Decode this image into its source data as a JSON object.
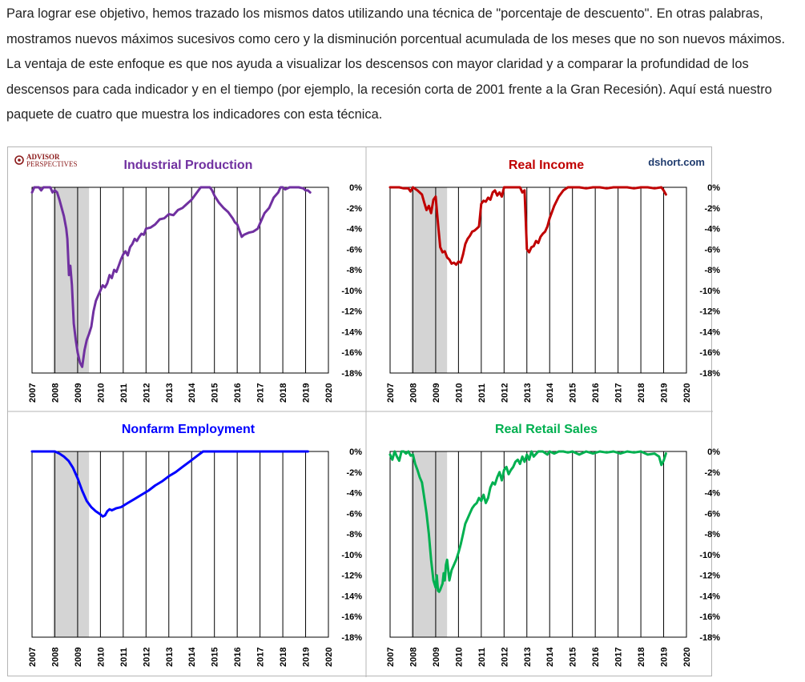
{
  "intro_text": "Para lograr ese objetivo, hemos trazado los mismos datos utilizando una técnica de \"porcentaje de descuento\". En otras palabras, mostramos nuevos máximos sucesivos como cero y la disminución porcentual acumulada de los meses que no son nuevos máximos. La ventaja de este enfoque es que nos ayuda a visualizar los descensos con mayor claridad y a comparar la profundidad de los descensos para cada indicador y en el tiempo (por ejemplo, la recesión corta de 2001 frente a la Gran Recesión). Aquí está nuestro paquete de cuatro que muestra los indicadores con esta técnica.",
  "logo": {
    "line1": "ADVISOR",
    "line2": "PERSPECTIVES"
  },
  "source": "dshort.com",
  "chart_data": [
    {
      "type": "line",
      "title": "Industrial Production",
      "color": "#7030a0",
      "xlim": [
        2007,
        2020
      ],
      "ylim": [
        -18,
        0
      ],
      "x_ticks": [
        "2007",
        "2008",
        "2009",
        "2010",
        "2011",
        "2012",
        "2013",
        "2014",
        "2015",
        "2016",
        "2017",
        "2018",
        "2019",
        "2020"
      ],
      "y_ticks": [
        "0%",
        "-2%",
        "-4%",
        "-6%",
        "-8%",
        "-10%",
        "-12%",
        "-14%",
        "-16%",
        "-18%"
      ],
      "recession": [
        2007.92,
        2009.5
      ],
      "x": [
        2007.0,
        2007.1,
        2007.2,
        2007.3,
        2007.4,
        2007.5,
        2007.6,
        2007.7,
        2007.8,
        2007.9,
        2008.0,
        2008.1,
        2008.2,
        2008.3,
        2008.4,
        2008.5,
        2008.55,
        2008.62,
        2008.68,
        2008.75,
        2008.83,
        2008.92,
        2009.0,
        2009.1,
        2009.2,
        2009.3,
        2009.4,
        2009.5,
        2009.6,
        2009.7,
        2009.8,
        2009.9,
        2010.0,
        2010.1,
        2010.2,
        2010.3,
        2010.4,
        2010.5,
        2010.6,
        2010.7,
        2010.8,
        2010.9,
        2011.0,
        2011.1,
        2011.2,
        2011.3,
        2011.4,
        2011.5,
        2011.6,
        2011.7,
        2011.8,
        2011.9,
        2012.0,
        2012.2,
        2012.4,
        2012.6,
        2012.8,
        2013.0,
        2013.2,
        2013.4,
        2013.6,
        2013.8,
        2014.0,
        2014.2,
        2014.4,
        2014.6,
        2014.8,
        2014.9,
        2015.0,
        2015.2,
        2015.4,
        2015.6,
        2015.8,
        2015.9,
        2016.0,
        2016.1,
        2016.2,
        2016.3,
        2016.5,
        2016.7,
        2016.9,
        2017.0,
        2017.2,
        2017.4,
        2017.6,
        2017.8,
        2017.9,
        2018.0,
        2018.1,
        2018.3,
        2018.5,
        2018.7,
        2018.9,
        2019.0,
        2019.1,
        2019.2
      ],
      "y": [
        -0.5,
        0,
        0,
        0,
        -0.3,
        0,
        0,
        0,
        0,
        -0.5,
        -0.3,
        -0.5,
        -1.2,
        -2.0,
        -2.8,
        -4.0,
        -5.0,
        -8.5,
        -7.6,
        -9.5,
        -13.2,
        -14.8,
        -16.0,
        -17.0,
        -17.4,
        -15.8,
        -14.8,
        -14.2,
        -13.5,
        -12.0,
        -11.0,
        -10.5,
        -10.0,
        -9.5,
        -9.7,
        -9.3,
        -8.5,
        -8.8,
        -8.0,
        -8.2,
        -7.6,
        -7.0,
        -6.5,
        -6.2,
        -6.6,
        -5.8,
        -5.5,
        -5.0,
        -5.2,
        -4.8,
        -4.5,
        -4.6,
        -4.0,
        -3.9,
        -3.6,
        -3.1,
        -3.0,
        -2.6,
        -2.7,
        -2.2,
        -2.0,
        -1.6,
        -1.2,
        -0.6,
        0,
        0,
        0,
        -0.3,
        -0.8,
        -1.5,
        -2.0,
        -2.4,
        -3.0,
        -3.4,
        -3.6,
        -4.2,
        -4.8,
        -4.6,
        -4.4,
        -4.3,
        -4.0,
        -3.5,
        -2.5,
        -2.0,
        -1.0,
        -0.5,
        0,
        0,
        -0.2,
        0,
        0,
        0,
        -0.1,
        -0.3,
        -0.3,
        -0.5
      ]
    },
    {
      "type": "line",
      "title": "Real Income",
      "color": "#c00000",
      "xlim": [
        2007,
        2020
      ],
      "ylim": [
        -18,
        0
      ],
      "x_ticks": [
        "2007",
        "2008",
        "2009",
        "2010",
        "2011",
        "2012",
        "2013",
        "2014",
        "2015",
        "2016",
        "2017",
        "2018",
        "2019",
        "2020"
      ],
      "y_ticks": [
        "0%",
        "-2%",
        "-4%",
        "-6%",
        "-8%",
        "-10%",
        "-12%",
        "-14%",
        "-16%",
        "-18%"
      ],
      "recession": [
        2007.92,
        2009.5
      ],
      "x": [
        2007.0,
        2007.2,
        2007.4,
        2007.6,
        2007.8,
        2007.9,
        2008.0,
        2008.2,
        2008.4,
        2008.5,
        2008.6,
        2008.7,
        2008.8,
        2008.9,
        2009.0,
        2009.1,
        2009.2,
        2009.3,
        2009.4,
        2009.5,
        2009.6,
        2009.7,
        2009.8,
        2009.9,
        2010.0,
        2010.1,
        2010.2,
        2010.3,
        2010.4,
        2010.5,
        2010.6,
        2010.7,
        2010.8,
        2010.9,
        2011.0,
        2011.1,
        2011.2,
        2011.3,
        2011.4,
        2011.5,
        2011.6,
        2011.7,
        2011.8,
        2011.9,
        2012.0,
        2012.1,
        2012.3,
        2012.5,
        2012.7,
        2012.8,
        2012.9,
        2013.0,
        2013.1,
        2013.2,
        2013.3,
        2013.4,
        2013.5,
        2013.6,
        2013.7,
        2013.8,
        2013.9,
        2014.0,
        2014.2,
        2014.4,
        2014.6,
        2014.8,
        2015.0,
        2015.3,
        2015.6,
        2015.9,
        2016.2,
        2016.5,
        2016.8,
        2017.1,
        2017.4,
        2017.7,
        2018.0,
        2018.3,
        2018.6,
        2018.9,
        2019.0,
        2019.1
      ],
      "y": [
        0,
        0,
        0,
        -0.1,
        -0.1,
        -0.4,
        0,
        -0.3,
        -0.7,
        -1.5,
        -2.2,
        -1.8,
        -2.5,
        -1.2,
        -0.9,
        -3.5,
        -5.8,
        -6.3,
        -6.2,
        -6.8,
        -7.0,
        -7.4,
        -7.3,
        -7.5,
        -7.2,
        -7.3,
        -6.5,
        -5.5,
        -5.0,
        -4.7,
        -4.3,
        -4.2,
        -4.0,
        -3.8,
        -1.6,
        -1.3,
        -1.4,
        -1.0,
        -1.2,
        -0.5,
        -0.3,
        -0.8,
        -0.5,
        -0.9,
        0,
        0,
        0,
        0,
        0,
        -0.5,
        -0.3,
        -6.0,
        -6.3,
        -5.8,
        -5.7,
        -5.2,
        -5.4,
        -4.8,
        -4.5,
        -4.3,
        -3.8,
        -3.0,
        -1.8,
        -0.9,
        -0.3,
        0,
        0,
        0,
        -0.1,
        0,
        0,
        -0.1,
        0,
        0,
        0,
        -0.1,
        0,
        0,
        -0.1,
        0,
        -0.3,
        -0.7
      ]
    },
    {
      "type": "line",
      "title": "Nonfarm Employment",
      "color": "#0000ff",
      "xlim": [
        2007,
        2020
      ],
      "ylim": [
        -18,
        0
      ],
      "x_ticks": [
        "2007",
        "2008",
        "2009",
        "2010",
        "2011",
        "2012",
        "2013",
        "2014",
        "2015",
        "2016",
        "2017",
        "2018",
        "2019",
        "2020"
      ],
      "y_ticks": [
        "0%",
        "-2%",
        "-4%",
        "-6%",
        "-8%",
        "-10%",
        "-12%",
        "-14%",
        "-16%",
        "-18%"
      ],
      "recession": [
        2007.92,
        2009.5
      ],
      "x": [
        2007.0,
        2007.4,
        2007.8,
        2008.0,
        2008.2,
        2008.4,
        2008.6,
        2008.8,
        2009.0,
        2009.2,
        2009.4,
        2009.6,
        2009.8,
        2010.0,
        2010.1,
        2010.2,
        2010.3,
        2010.4,
        2010.5,
        2010.7,
        2010.9,
        2011.2,
        2011.5,
        2011.8,
        2012.1,
        2012.4,
        2012.7,
        2013.0,
        2013.3,
        2013.6,
        2013.9,
        2014.2,
        2014.5,
        2015.0,
        2016.0,
        2017.0,
        2018.0,
        2019.0,
        2019.1
      ],
      "y": [
        0,
        0,
        0,
        0,
        -0.2,
        -0.5,
        -0.9,
        -1.6,
        -2.6,
        -3.8,
        -4.8,
        -5.4,
        -5.8,
        -6.1,
        -6.3,
        -6.2,
        -5.8,
        -5.6,
        -5.7,
        -5.5,
        -5.4,
        -5.0,
        -4.6,
        -4.2,
        -3.8,
        -3.3,
        -2.9,
        -2.4,
        -2.0,
        -1.5,
        -1.0,
        -0.5,
        0,
        0,
        0,
        0,
        0,
        0,
        0
      ]
    },
    {
      "type": "line",
      "title": "Real Retail Sales",
      "color": "#00b050",
      "xlim": [
        2007,
        2020
      ],
      "ylim": [
        -18,
        0
      ],
      "x_ticks": [
        "2007",
        "2008",
        "2009",
        "2010",
        "2011",
        "2012",
        "2013",
        "2014",
        "2015",
        "2016",
        "2017",
        "2018",
        "2019",
        "2020"
      ],
      "y_ticks": [
        "0%",
        "-2%",
        "-4%",
        "-6%",
        "-8%",
        "-10%",
        "-12%",
        "-14%",
        "-16%",
        "-18%"
      ],
      "recession": [
        2007.92,
        2009.5
      ],
      "x": [
        2007.0,
        2007.1,
        2007.2,
        2007.3,
        2007.4,
        2007.5,
        2007.6,
        2007.7,
        2007.8,
        2007.9,
        2008.0,
        2008.1,
        2008.2,
        2008.3,
        2008.4,
        2008.5,
        2008.6,
        2008.7,
        2008.8,
        2008.9,
        2009.0,
        2009.05,
        2009.1,
        2009.15,
        2009.2,
        2009.3,
        2009.35,
        2009.4,
        2009.45,
        2009.5,
        2009.6,
        2009.7,
        2009.8,
        2009.9,
        2010.0,
        2010.1,
        2010.2,
        2010.3,
        2010.4,
        2010.5,
        2010.6,
        2010.7,
        2010.8,
        2010.9,
        2011.0,
        2011.1,
        2011.2,
        2011.3,
        2011.4,
        2011.5,
        2011.6,
        2011.7,
        2011.8,
        2011.9,
        2012.0,
        2012.1,
        2012.2,
        2012.3,
        2012.4,
        2012.5,
        2012.6,
        2012.7,
        2012.8,
        2012.9,
        2013.0,
        2013.1,
        2013.2,
        2013.3,
        2013.5,
        2013.7,
        2013.9,
        2014.0,
        2014.2,
        2014.4,
        2014.6,
        2014.8,
        2015.0,
        2015.3,
        2015.6,
        2015.9,
        2016.2,
        2016.5,
        2016.8,
        2017.1,
        2017.4,
        2017.7,
        2018.0,
        2018.3,
        2018.6,
        2018.8,
        2018.9,
        2019.0,
        2019.1
      ],
      "y": [
        -0.3,
        -0.8,
        0,
        -0.5,
        -0.9,
        0,
        0,
        -0.2,
        0,
        -0.4,
        -0.3,
        -1.2,
        -1.8,
        -2.5,
        -3.0,
        -4.5,
        -6.0,
        -8.0,
        -10.5,
        -12.5,
        -13.2,
        -12.0,
        -13.5,
        -13.6,
        -13.4,
        -12.8,
        -11.8,
        -12.5,
        -11.0,
        -10.5,
        -12.5,
        -11.5,
        -11.0,
        -10.5,
        -9.8,
        -9.0,
        -8.0,
        -7.0,
        -6.5,
        -6.0,
        -5.5,
        -5.2,
        -5.0,
        -4.5,
        -4.8,
        -4.2,
        -5.0,
        -4.5,
        -3.5,
        -3.0,
        -3.2,
        -2.5,
        -2.0,
        -2.8,
        -1.8,
        -1.5,
        -2.2,
        -1.8,
        -1.5,
        -1.0,
        -0.8,
        -1.2,
        -0.5,
        -1.0,
        -0.3,
        -0.8,
        0,
        -0.5,
        0,
        0,
        -0.3,
        0,
        -0.2,
        0,
        0,
        -0.1,
        0,
        -0.3,
        0,
        -0.2,
        0,
        -0.1,
        0,
        -0.2,
        0,
        -0.1,
        0,
        -0.3,
        -0.2,
        -0.5,
        -1.3,
        -0.9,
        -0.2
      ]
    }
  ]
}
